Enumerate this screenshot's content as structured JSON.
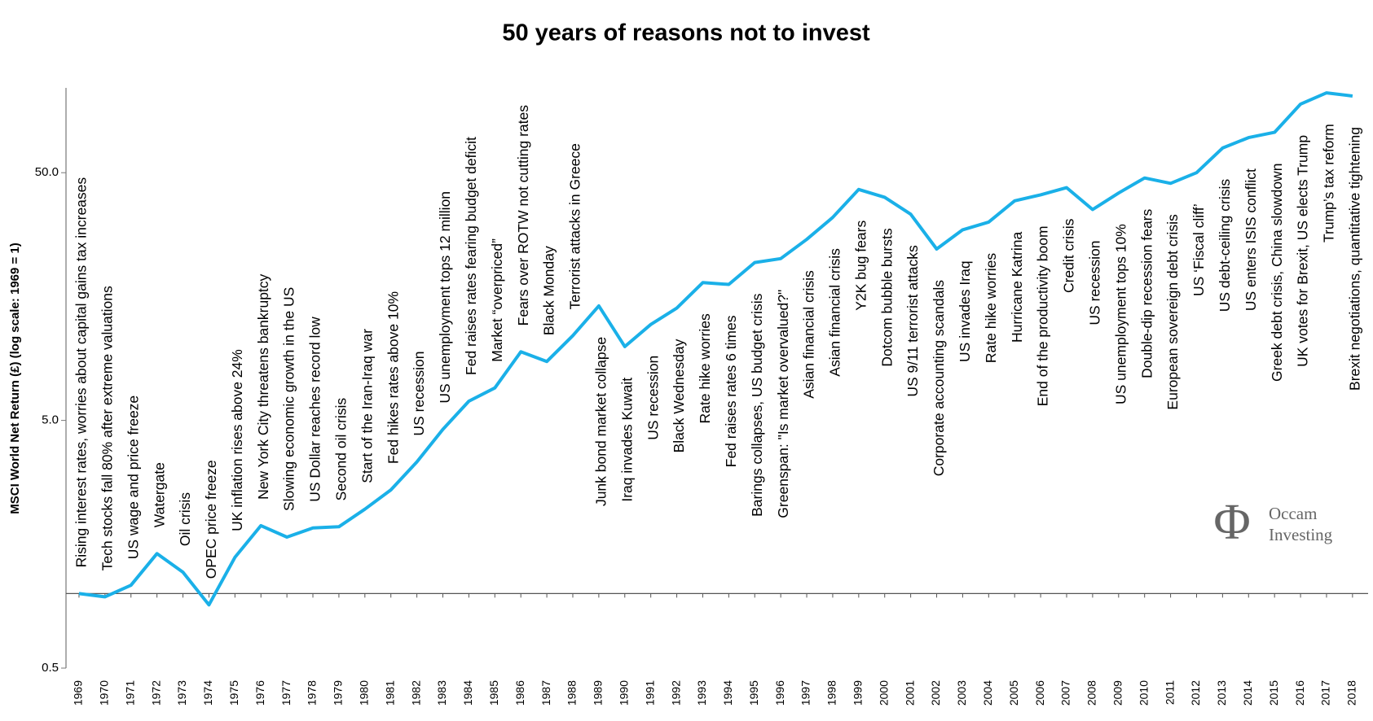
{
  "chart_data": {
    "type": "line",
    "title": "50 years of reasons not to invest",
    "y_label": "MSCI World Net Return (£) (log scale: 1969 = 1)",
    "log_scale_y": true,
    "x_axis_at": 1,
    "color": "#1ab0e8",
    "x": [
      1969,
      1970,
      1971,
      1972,
      1973,
      1974,
      1975,
      1976,
      1977,
      1978,
      1979,
      1980,
      1981,
      1982,
      1983,
      1984,
      1985,
      1986,
      1987,
      1988,
      1989,
      1990,
      1991,
      1992,
      1993,
      1994,
      1995,
      1996,
      1997,
      1998,
      1999,
      2000,
      2001,
      2002,
      2003,
      2004,
      2005,
      2006,
      2007,
      2008,
      2009,
      2010,
      2011,
      2012,
      2013,
      2014,
      2015,
      2016,
      2017,
      2018
    ],
    "xlim": [
      1968.5,
      2018.6
    ],
    "values": [
      1.0,
      0.97,
      1.08,
      1.45,
      1.22,
      0.9,
      1.4,
      1.88,
      1.69,
      1.84,
      1.86,
      2.19,
      2.62,
      3.4,
      4.6,
      5.98,
      6.76,
      9.46,
      8.65,
      11.0,
      14.5,
      9.93,
      12.2,
      14.2,
      18.0,
      17.7,
      21.7,
      22.5,
      26.9,
      33.0,
      42.8,
      39.8,
      34.0,
      24.6,
      29.4,
      31.6,
      38.5,
      40.7,
      43.5,
      35.5,
      41.4,
      47.6,
      45.3,
      50.0,
      62.9,
      69.3,
      72.8,
      94.6,
      105,
      102
    ],
    "annotations": [
      "Rising interest rates, worries about capital gains tax increases",
      "Tech stocks fall 80% after extreme valuations",
      "US wage and price freeze",
      "Watergate",
      "Oil crisis",
      "OPEC price freeze",
      "UK inflation rises above 24%",
      "New York City threatens bankruptcy",
      "Slowing economic growth in the US",
      "US Dollar reaches record low",
      "Second oil crisis",
      "Start of the Iran-Iraq war",
      "Fed hikes rates above 10%",
      "US recession",
      "US unemployment tops 12 million",
      "Fed raises rates fearing budget deficit",
      "Market “overpriced”",
      "Fears over ROTW not cutting rates",
      "Black Monday",
      "Terrorist attacks in Greece",
      "Junk bond market collapse",
      "Iraq invades Kuwait",
      "US recession",
      "Black Wednesday",
      "Rate hike worries",
      "Fed raises rates 6 times",
      "Barings collapses, US budget crisis",
      "Greenspan: \"Is market overvalued?\"",
      "Asian financial crisis",
      "Asian financial crisis",
      "Y2K bug fears",
      "Dotcom bubble bursts",
      "US 9/11 terrorist attacks",
      "Corporate accounting scandals",
      "US invades Iraq",
      "Rate hike worries",
      "Hurricane Katrina",
      "End of the productivity boom",
      "Credit crisis",
      "US recession",
      "US unemployment  tops 10%",
      "Double-dip recession fears",
      "European sovereign debt crisis",
      "US ‘Fiscal cliff’",
      "US debt-ceiling crisis",
      "US enters ISIS conflict",
      "Greek debt crisis, China slowdown",
      "UK votes for Brexit, US elects Trump",
      "Trump’s tax reform",
      "Brexit negotiations, quantitative tightening"
    ],
    "ylim": [
      0.5,
      110
    ],
    "yticks": [
      0.5,
      {
        "value": 5,
        "label": "5.0"
      },
      {
        "value": 50,
        "label": "50.0"
      }
    ],
    "logo_symbol": "Φ",
    "logo": [
      "Occam",
      "Investing"
    ]
  }
}
